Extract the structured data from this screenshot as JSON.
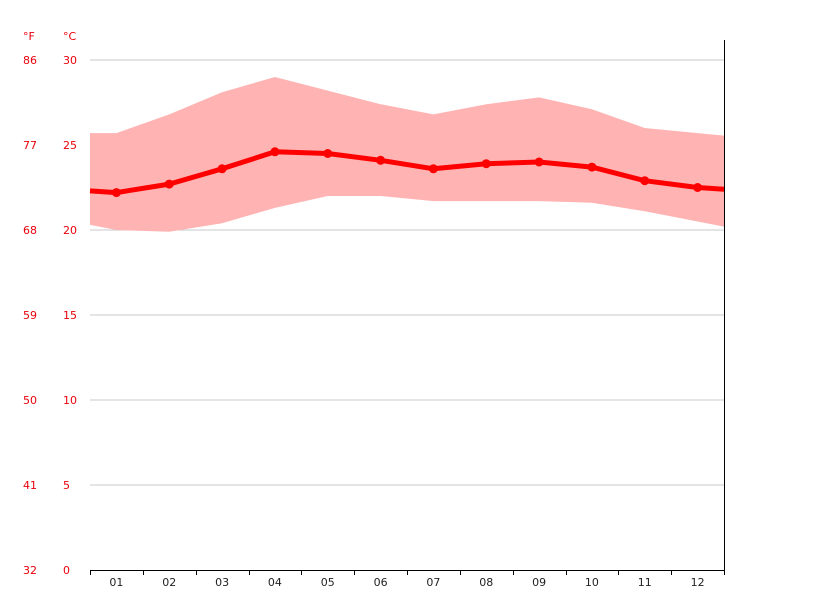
{
  "chart_data": {
    "type": "line",
    "categories": [
      "01",
      "02",
      "03",
      "04",
      "05",
      "06",
      "07",
      "08",
      "09",
      "10",
      "11",
      "12"
    ],
    "unit_f_label": "°F",
    "unit_c_label": "°C",
    "y_ticks_c": [
      0,
      5,
      10,
      15,
      20,
      25,
      30
    ],
    "y_ticks_f": [
      32,
      41,
      50,
      59,
      68,
      77,
      86
    ],
    "ylim_c": [
      0,
      30
    ],
    "grid": true,
    "series": [
      {
        "kind": "mean",
        "values": [
          22.2,
          22.7,
          23.6,
          24.6,
          24.5,
          24.1,
          23.6,
          23.9,
          24.0,
          23.7,
          22.9,
          22.5
        ]
      },
      {
        "kind": "max",
        "values": [
          25.7,
          26.8,
          28.1,
          29.0,
          28.2,
          27.4,
          26.8,
          27.4,
          27.8,
          27.1,
          26.0,
          25.7
        ]
      },
      {
        "kind": "min",
        "values": [
          20.0,
          19.9,
          20.4,
          21.3,
          22.0,
          22.0,
          21.7,
          21.7,
          21.7,
          21.6,
          21.1,
          20.5
        ]
      }
    ],
    "colors": {
      "mean_line": "#ff0000",
      "range_band": "#ffb3b3",
      "grid": "#c8c8c8",
      "tick_label_temp": "#e8000b",
      "tick_label_month": "#222222",
      "axis": "#000000"
    }
  }
}
